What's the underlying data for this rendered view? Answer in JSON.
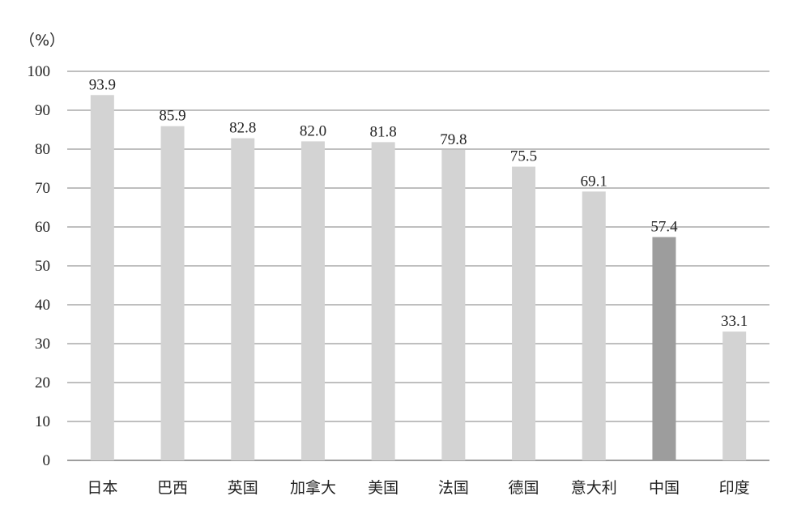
{
  "chart_data": {
    "type": "bar",
    "unit_label": "（%）",
    "categories": [
      "日本",
      "巴西",
      "英国",
      "加拿大",
      "美国",
      "法国",
      "德国",
      "意大利",
      "中国",
      "印度"
    ],
    "values": [
      93.9,
      85.9,
      82.8,
      82.0,
      81.8,
      79.8,
      75.5,
      69.1,
      57.4,
      33.1
    ],
    "value_labels": [
      "93.9",
      "85.9",
      "82.8",
      "82.0",
      "81.8",
      "79.8",
      "75.5",
      "69.1",
      "57.4",
      "33.1"
    ],
    "highlight_category": "中国",
    "ylim": [
      0,
      100
    ],
    "yticks": [
      0,
      10,
      20,
      30,
      40,
      50,
      60,
      70,
      80,
      90,
      100
    ],
    "grid": true,
    "colors": {
      "bar": "#d3d3d3",
      "highlight": "#9d9d9d",
      "grid": "#7f7f7f"
    }
  }
}
